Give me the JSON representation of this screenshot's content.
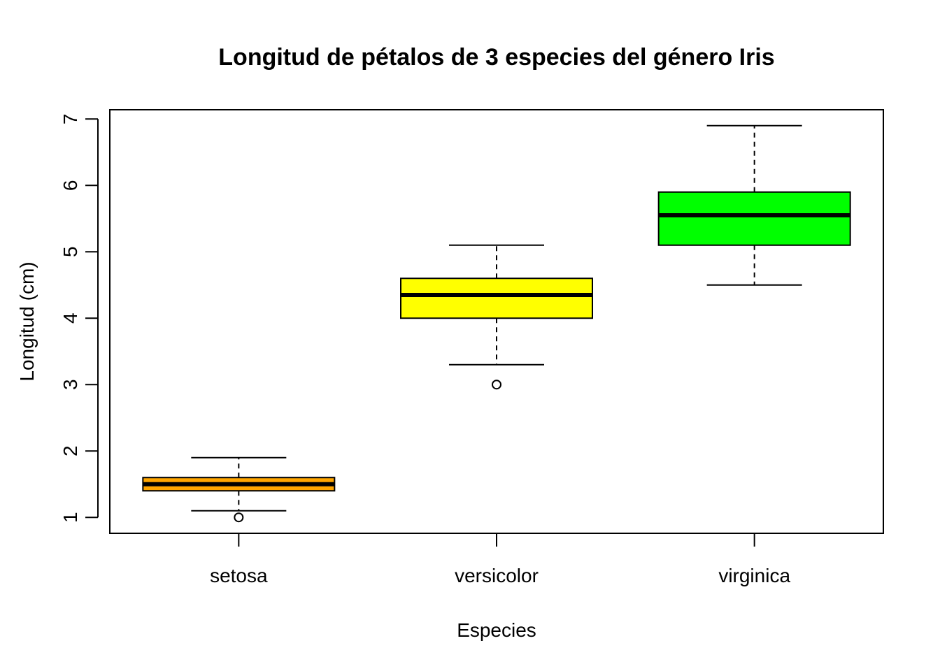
{
  "chart_data": {
    "type": "boxplot",
    "title": "Longitud de pétalos de 3 especies del género Iris",
    "xlabel": "Especies",
    "ylabel": "Longitud (cm)",
    "ylim": [
      0.76,
      7.14
    ],
    "yticks": [
      1,
      2,
      3,
      4,
      5,
      6,
      7
    ],
    "grid": false,
    "legend": "none",
    "categories": [
      "setosa",
      "versicolor",
      "virginica"
    ],
    "boxes": [
      {
        "name": "setosa",
        "whisker_low": 1.1,
        "q1": 1.4,
        "median": 1.5,
        "q3": 1.6,
        "whisker_high": 1.9,
        "outliers": [
          1.0
        ],
        "color": "#ffa500"
      },
      {
        "name": "versicolor",
        "whisker_low": 3.3,
        "q1": 4.0,
        "median": 4.35,
        "q3": 4.6,
        "whisker_high": 5.1,
        "outliers": [
          3.0
        ],
        "color": "#ffff00"
      },
      {
        "name": "virginica",
        "whisker_low": 4.5,
        "q1": 5.1,
        "median": 5.55,
        "q3": 5.9,
        "whisker_high": 6.9,
        "outliers": [],
        "color": "#00ff00"
      }
    ]
  }
}
